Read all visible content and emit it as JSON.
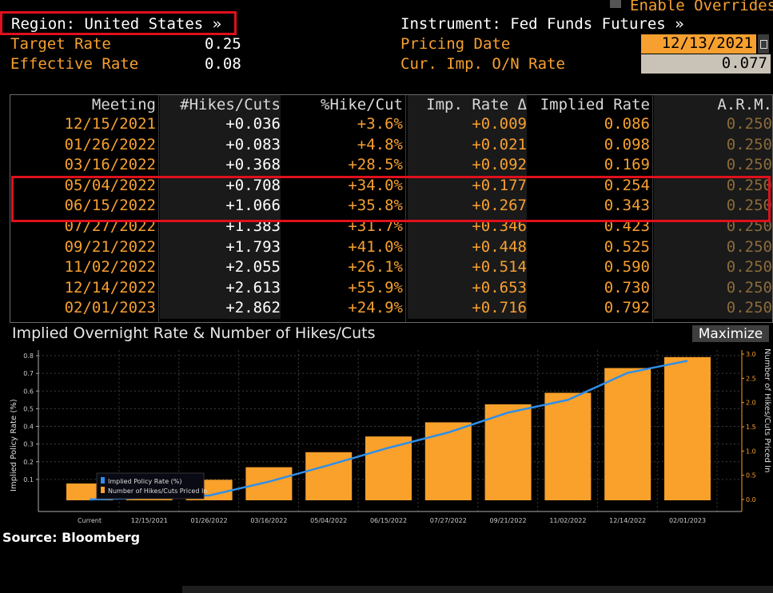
{
  "header": {
    "enable_overrides": "Enable Overrides",
    "region": "Region: United States »",
    "instrument": "Instrument: Fed Funds Futures »",
    "target_rate_label": "Target Rate",
    "target_rate_value": "0.25",
    "effective_rate_label": "Effective Rate",
    "effective_rate_value": "0.08",
    "pricing_date_label": "Pricing Date",
    "pricing_date_value": "12/13/2021",
    "cur_imp_label": "Cur. Imp. O/N Rate",
    "cur_imp_value": "0.077"
  },
  "table": {
    "columns": [
      "Meeting",
      "#Hikes/Cuts",
      "%Hike/Cut",
      "Imp. Rate Δ",
      "Implied Rate",
      "A.R.M."
    ],
    "rows": [
      [
        "12/15/2021",
        "+0.036",
        "+3.6%",
        "+0.009",
        "0.086",
        "0.250"
      ],
      [
        "01/26/2022",
        "+0.083",
        "+4.8%",
        "+0.021",
        "0.098",
        "0.250"
      ],
      [
        "03/16/2022",
        "+0.368",
        "+28.5%",
        "+0.092",
        "0.169",
        "0.250"
      ],
      [
        "05/04/2022",
        "+0.708",
        "+34.0%",
        "+0.177",
        "0.254",
        "0.250"
      ],
      [
        "06/15/2022",
        "+1.066",
        "+35.8%",
        "+0.267",
        "0.343",
        "0.250"
      ],
      [
        "07/27/2022",
        "+1.383",
        "+31.7%",
        "+0.346",
        "0.423",
        "0.250"
      ],
      [
        "09/21/2022",
        "+1.793",
        "+41.0%",
        "+0.448",
        "0.525",
        "0.250"
      ],
      [
        "11/02/2022",
        "+2.055",
        "+26.1%",
        "+0.514",
        "0.590",
        "0.250"
      ],
      [
        "12/14/2022",
        "+2.613",
        "+55.9%",
        "+0.653",
        "0.730",
        "0.250"
      ],
      [
        "02/01/2023",
        "+2.862",
        "+24.9%",
        "+0.716",
        "0.792",
        "0.250"
      ]
    ]
  },
  "chart": {
    "title": "Implied Overnight Rate & Number of Hikes/Cuts",
    "maximize_label": "Maximize"
  },
  "source": "Source: Bloomberg",
  "colors": {
    "amber": "#f7a030",
    "bar": "#f9a12b",
    "line": "#2f8ee8",
    "highlight": "#e0101c"
  },
  "chart_data": {
    "type": "bar",
    "ylabel": "Implied Policy Rate (%)",
    "y2label": "Number of Hikes/Cuts Priced In",
    "categories": [
      "Current",
      "12/15/2021",
      "01/26/2022",
      "03/16/2022",
      "05/04/2022",
      "06/15/2022",
      "07/27/2022",
      "09/21/2022",
      "11/02/2022",
      "12/14/2022",
      "02/01/2023"
    ],
    "ylim": [
      0.0,
      0.85
    ],
    "y2lim": [
      0.0,
      3.1
    ],
    "yticks": [
      "0.1",
      "0.2",
      "0.3",
      "0.4",
      "0.5",
      "0.6",
      "0.7",
      "0.8"
    ],
    "y2ticks": [
      "0.0",
      "0.5",
      "1.0",
      "1.5",
      "2.0",
      "2.5",
      "3.0"
    ],
    "series": [
      {
        "name": "Implied Policy Rate (%)",
        "kind": "bar",
        "values": [
          0.077,
          0.086,
          0.098,
          0.169,
          0.254,
          0.343,
          0.423,
          0.525,
          0.59,
          0.73,
          0.792
        ]
      },
      {
        "name": "Number of Hikes/Cuts Priced In",
        "kind": "line",
        "values": [
          0.0,
          0.036,
          0.083,
          0.368,
          0.708,
          1.066,
          1.383,
          1.793,
          2.055,
          2.613,
          2.862
        ]
      }
    ],
    "legend": [
      "Implied Policy Rate (%)",
      "Number of Hikes/Cuts Priced In"
    ]
  }
}
